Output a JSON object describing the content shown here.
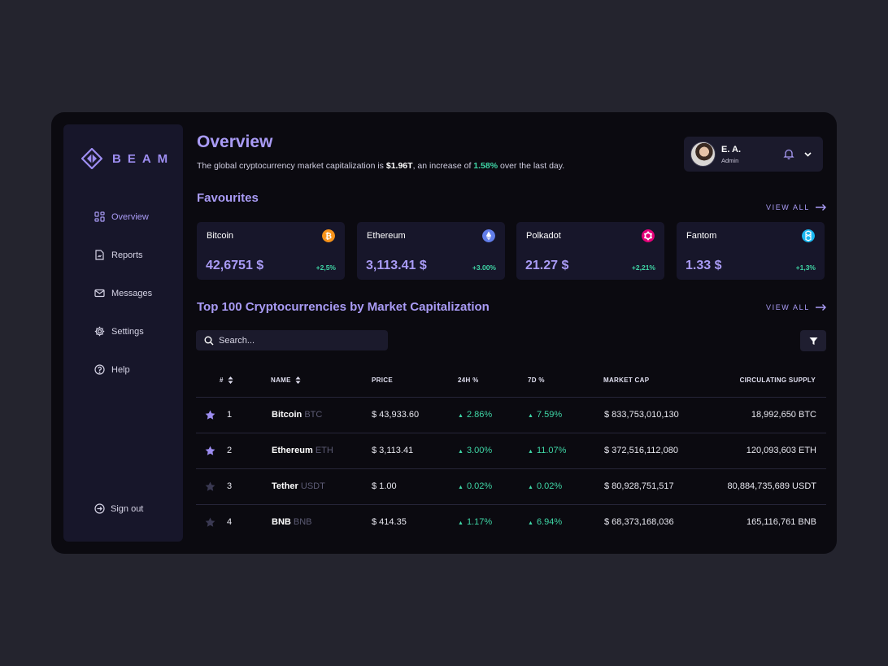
{
  "app": {
    "name": "BEAM"
  },
  "sidebar": {
    "items": [
      {
        "label": "Overview",
        "icon": "grid-icon",
        "active": true
      },
      {
        "label": "Reports",
        "icon": "document-icon",
        "active": false
      },
      {
        "label": "Messages",
        "icon": "mail-icon",
        "active": false
      },
      {
        "label": "Settings",
        "icon": "gear-icon",
        "active": false
      },
      {
        "label": "Help",
        "icon": "help-icon",
        "active": false
      }
    ],
    "signout": "Sign out"
  },
  "header": {
    "title": "Overview",
    "subtitle_pre": "The global cryptocurrency market capitalization is ",
    "subtitle_cap": "$1.96T",
    "subtitle_mid": ", an increase of ",
    "subtitle_pct": "1.58%",
    "subtitle_post": " over the last day."
  },
  "user": {
    "name": "E. A.",
    "role": "Admin"
  },
  "favourites": {
    "title": "Favourites",
    "view_all": "VIEW ALL",
    "cards": [
      {
        "name": "Bitcoin",
        "price": "42,6751 $",
        "change": "+2,5%",
        "icon_color": "#f7931a",
        "icon": "bitcoin-icon"
      },
      {
        "name": "Ethereum",
        "price": "3,113.41 $",
        "change": "+3.00%",
        "icon_color": "#627eea",
        "icon": "ethereum-icon"
      },
      {
        "name": "Polkadot",
        "price": "21.27 $",
        "change": "+2,21%",
        "icon_color": "#e6007a",
        "icon": "polkadot-icon"
      },
      {
        "name": "Fantom",
        "price": "1.33 $",
        "change": "+1,3%",
        "icon_color": "#1ab8f0",
        "icon": "fantom-icon"
      }
    ]
  },
  "top100": {
    "title": "Top 100 Cryptocurrencies by Market Capitalization",
    "view_all": "VIEW ALL",
    "search_placeholder": "Search...",
    "columns": {
      "rank": "#",
      "name": "NAME",
      "price": "PRICE",
      "h24": "24H %",
      "d7": "7D %",
      "mcap": "MARKET CAP",
      "supply": "CIRCULATING SUPPLY"
    },
    "rows": [
      {
        "rank": "1",
        "name": "Bitcoin",
        "symbol": "BTC",
        "price": "$ 43,933.60",
        "h24": "2.86%",
        "d7": "7.59%",
        "mcap": "$ 833,753,010,130",
        "supply": "18,992,650 BTC",
        "starred": true
      },
      {
        "rank": "2",
        "name": "Ethereum",
        "symbol": "ETH",
        "price": "$ 3,113.41",
        "h24": "3.00%",
        "d7": "11.07%",
        "mcap": "$ 372,516,112,080",
        "supply": "120,093,603 ETH",
        "starred": true
      },
      {
        "rank": "3",
        "name": "Tether",
        "symbol": "USDT",
        "price": "$ 1.00",
        "h24": "0.02%",
        "d7": "0.02%",
        "mcap": "$ 80,928,751,517",
        "supply": "80,884,735,689 USDT",
        "starred": false
      },
      {
        "rank": "4",
        "name": "BNB",
        "symbol": "BNB",
        "price": "$ 414.35",
        "h24": "1.17%",
        "d7": "6.94%",
        "mcap": "$ 68,373,168,036",
        "supply": "165,116,761 BNB",
        "starred": false
      }
    ]
  },
  "colors": {
    "accent": "#a99bf5",
    "positive": "#3fd6a6",
    "star_active": "#9d8df1",
    "star_inactive": "#3a3952"
  }
}
